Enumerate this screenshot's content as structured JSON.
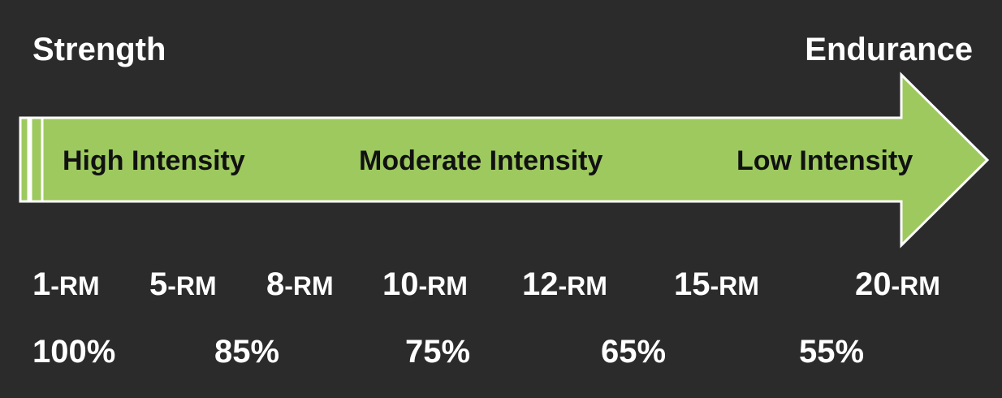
{
  "title_left": "Strength",
  "title_right": "Endurance",
  "colors": {
    "background": "#2b2b2b",
    "arrow_fill": "#9dc95f",
    "arrow_stroke": "#ffffff",
    "text": "#ffffff",
    "zone_text": "#111111"
  },
  "zones": [
    {
      "label": "High Intensity"
    },
    {
      "label": "Moderate Intensity"
    },
    {
      "label": "Low Intensity"
    }
  ],
  "reps": [
    {
      "value": "1",
      "unit": "-RM"
    },
    {
      "value": "5",
      "unit": "-RM"
    },
    {
      "value": "8",
      "unit": "-RM"
    },
    {
      "value": "10",
      "unit": "-RM"
    },
    {
      "value": "12",
      "unit": "-RM"
    },
    {
      "value": "15",
      "unit": "-RM"
    },
    {
      "value": "20",
      "unit": "-RM"
    }
  ],
  "percentages": [
    "100%",
    "85%",
    "75%",
    "65%",
    "55%"
  ]
}
